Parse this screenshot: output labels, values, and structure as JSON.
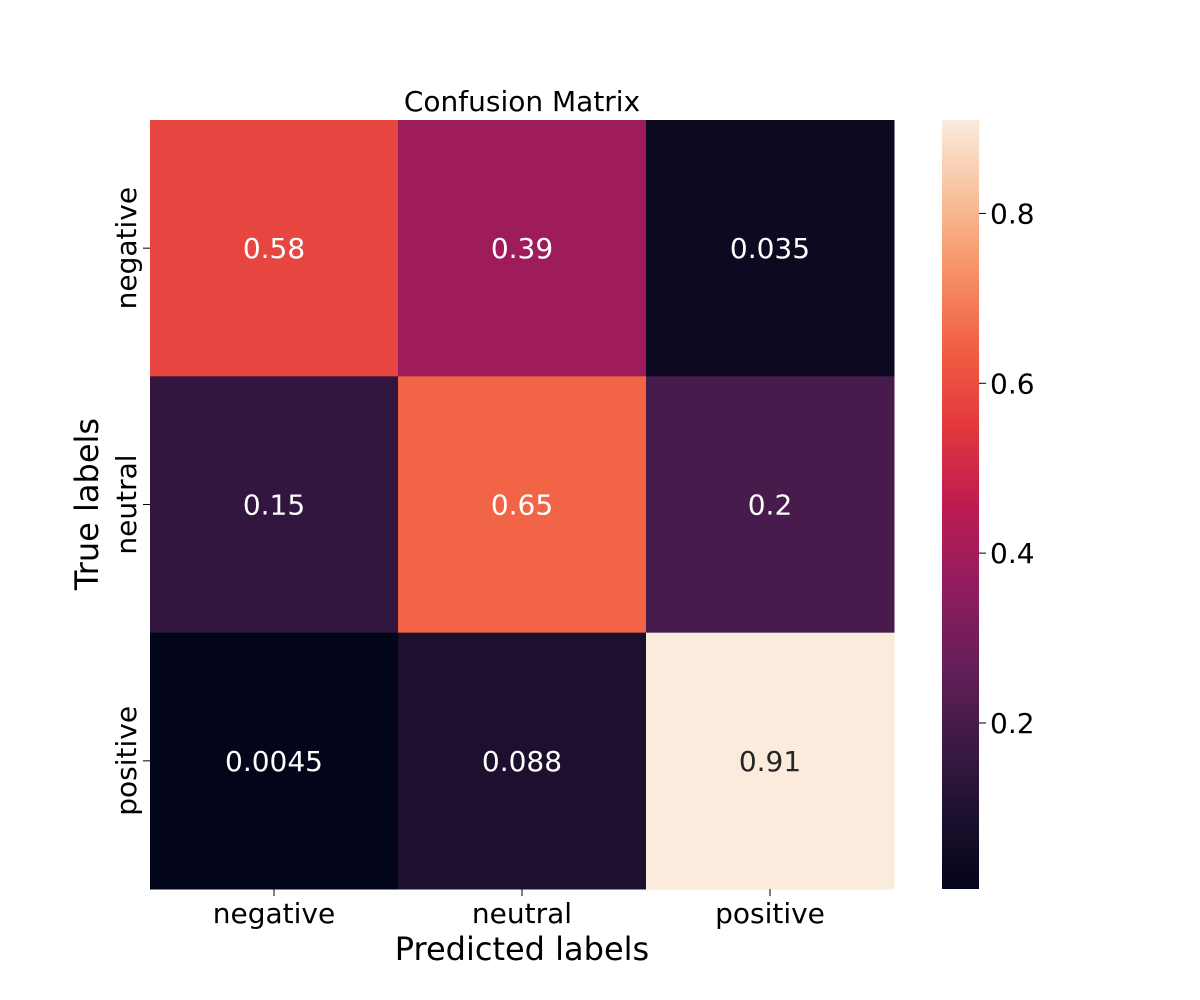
{
  "chart_data": {
    "type": "heatmap",
    "title": "Confusion Matrix",
    "xlabel": "Predicted labels",
    "ylabel": "True labels",
    "x_categories": [
      "negative",
      "neutral",
      "positive"
    ],
    "y_categories": [
      "negative",
      "neutral",
      "positive"
    ],
    "values": [
      [
        0.58,
        0.39,
        0.035
      ],
      [
        0.15,
        0.65,
        0.2
      ],
      [
        0.0045,
        0.088,
        0.91
      ]
    ],
    "value_labels": [
      [
        "0.58",
        "0.39",
        "0.035"
      ],
      [
        "0.15",
        "0.65",
        "0.2"
      ],
      [
        "0.0045",
        "0.088",
        "0.91"
      ]
    ],
    "colorbar": {
      "range": [
        0.0045,
        0.91
      ],
      "ticks": [
        0.2,
        0.4,
        0.6,
        0.8
      ],
      "tick_labels": [
        "0.2",
        "0.4",
        "0.6",
        "0.8"
      ]
    },
    "colormap": "rocket",
    "grid": false,
    "legend": "colorbar-right"
  }
}
